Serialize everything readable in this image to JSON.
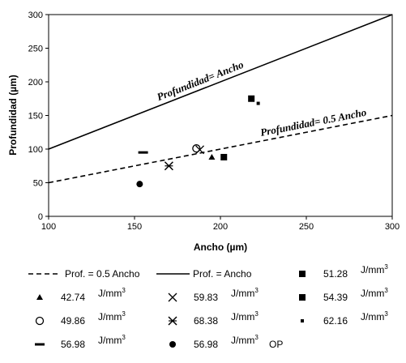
{
  "chart_data": {
    "type": "scatter",
    "xlabel": "Ancho (µm)",
    "ylabel": "Profundidad (µm)",
    "xlim": [
      100,
      300
    ],
    "ylim": [
      0,
      300
    ],
    "xticks": [
      "100",
      "150",
      "200",
      "250",
      "300"
    ],
    "yticks": [
      "0",
      "50",
      "100",
      "150",
      "200",
      "250",
      "300"
    ],
    "grid": false,
    "lines": [
      {
        "key": "half",
        "name": "Prof. = 0.5 Ancho",
        "style": "dashed",
        "slope": 0.5,
        "annotation": "Profundidad= 0.5 Ancho",
        "annotation_x": 255
      },
      {
        "key": "full",
        "name": "Prof. = Ancho",
        "style": "solid",
        "slope": 1.0,
        "annotation": "Profundidad= Ancho",
        "annotation_x": 190
      }
    ],
    "series": [
      {
        "value": "51.28",
        "unit": "J/mm³",
        "suffix": "",
        "marker": "square",
        "x": 218,
        "y": 175
      },
      {
        "value": "42.74",
        "unit": "J/mm³",
        "suffix": "",
        "marker": "triangle",
        "x": 195,
        "y": 88
      },
      {
        "value": "59.83",
        "unit": "J/mm³",
        "suffix": "",
        "marker": "x",
        "x": 188,
        "y": 99
      },
      {
        "value": "54.39",
        "unit": "J/mm³",
        "suffix": "",
        "marker": "square",
        "x": 202,
        "y": 88
      },
      {
        "value": "49.86",
        "unit": "J/mm³",
        "suffix": "",
        "marker": "circle-open",
        "x": 186,
        "y": 101
      },
      {
        "value": "68.38",
        "unit": "J/mm³",
        "suffix": "",
        "marker": "star",
        "x": 170,
        "y": 75
      },
      {
        "value": "62.16",
        "unit": "J/mm³",
        "suffix": "",
        "marker": "square-small",
        "x": 222,
        "y": 168
      },
      {
        "value": "56.98",
        "unit": "J/mm³",
        "suffix": "",
        "marker": "dash",
        "x": 155,
        "y": 95
      },
      {
        "value": "56.98",
        "unit": "J/mm³",
        "suffix": "OP",
        "marker": "circle",
        "x": 153,
        "y": 48
      }
    ]
  }
}
